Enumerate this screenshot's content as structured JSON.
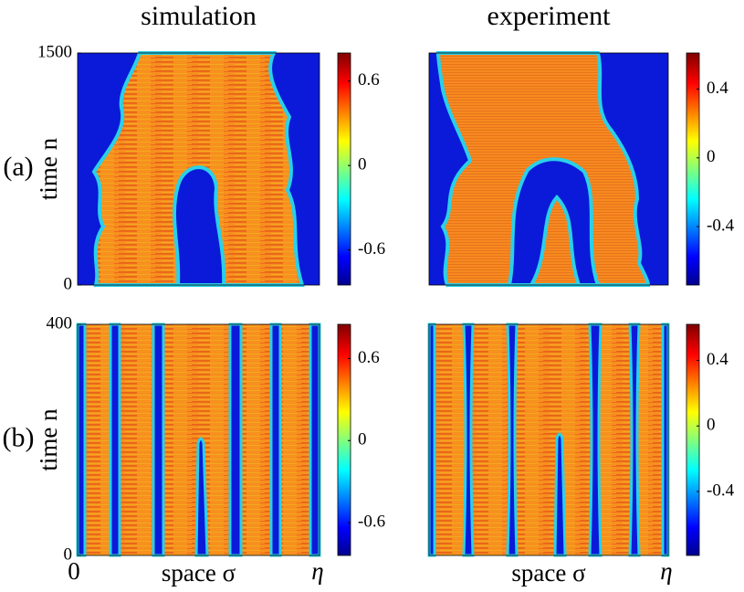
{
  "chart_data": [
    {
      "type": "heatmap",
      "panel_label": "(a)",
      "title": "simulation",
      "ylabel": "time n",
      "ylim": [
        0,
        1500
      ],
      "yticks": [
        0,
        1500
      ],
      "colorbar": {
        "lim": [
          -0.85,
          0.8
        ],
        "ticks": [
          -0.6,
          0,
          0.6
        ]
      }
    },
    {
      "type": "heatmap",
      "title": "experiment",
      "ylim": [
        0,
        1500
      ],
      "colorbar": {
        "lim": [
          -0.74,
          0.61
        ],
        "ticks": [
          -0.4,
          0,
          0.4
        ]
      }
    },
    {
      "type": "heatmap",
      "panel_label": "(b)",
      "ylabel": "time n",
      "xlabel": "space σ",
      "xlabels": [
        "0",
        "η"
      ],
      "ylim": [
        0,
        400
      ],
      "yticks": [
        0,
        400
      ],
      "colorbar": {
        "lim": [
          -0.84,
          0.85
        ],
        "ticks": [
          -0.6,
          0,
          0.6
        ]
      }
    },
    {
      "type": "heatmap",
      "xlabel": "space σ",
      "xlabels": [
        "η"
      ],
      "ylim": [
        0,
        400
      ],
      "colorbar": {
        "lim": [
          -0.79,
          0.62
        ],
        "ticks": [
          -0.4,
          0,
          0.4
        ]
      }
    }
  ]
}
